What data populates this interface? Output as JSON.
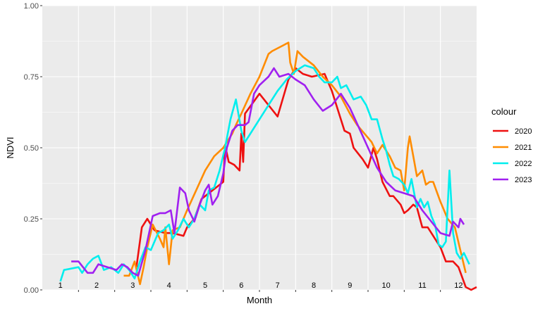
{
  "chart_data": {
    "type": "line",
    "title": "",
    "xlabel": "Month",
    "ylabel": "NDVI",
    "xlim": [
      0.5,
      12.5
    ],
    "ylim": [
      0,
      1
    ],
    "y_ticks": [
      "0.00",
      "0.25",
      "0.50",
      "0.75",
      "1.00"
    ],
    "month_labels": [
      "1",
      "2",
      "3",
      "4",
      "5",
      "6",
      "7",
      "8",
      "9",
      "10",
      "11",
      "12"
    ],
    "grid": true,
    "legend": {
      "title": "colour",
      "position": "right"
    },
    "series": [
      {
        "name": "2020",
        "color": "#ee1111",
        "points": [
          [
            3.1,
            0.08
          ],
          [
            3.25,
            0.22
          ],
          [
            3.4,
            0.25
          ],
          [
            3.6,
            0.21
          ],
          [
            3.9,
            0.2
          ],
          [
            4.1,
            0.2
          ],
          [
            4.4,
            0.19
          ],
          [
            4.5,
            0.22
          ],
          [
            4.7,
            0.25
          ],
          [
            4.9,
            0.32
          ],
          [
            5.2,
            0.35
          ],
          [
            5.5,
            0.38
          ],
          [
            5.55,
            0.51
          ],
          [
            5.65,
            0.45
          ],
          [
            5.8,
            0.44
          ],
          [
            5.95,
            0.42
          ],
          [
            6.0,
            0.55
          ],
          [
            6.05,
            0.45
          ],
          [
            6.1,
            0.62
          ],
          [
            6.5,
            0.69
          ],
          [
            7.0,
            0.61
          ],
          [
            7.3,
            0.74
          ],
          [
            7.5,
            0.78
          ],
          [
            7.7,
            0.76
          ],
          [
            7.95,
            0.75
          ],
          [
            8.3,
            0.76
          ],
          [
            8.5,
            0.7
          ],
          [
            8.7,
            0.62
          ],
          [
            8.85,
            0.56
          ],
          [
            9.0,
            0.55
          ],
          [
            9.1,
            0.5
          ],
          [
            9.35,
            0.46
          ],
          [
            9.5,
            0.43
          ],
          [
            9.65,
            0.5
          ],
          [
            9.75,
            0.46
          ],
          [
            9.9,
            0.38
          ],
          [
            10.1,
            0.33
          ],
          [
            10.2,
            0.33
          ],
          [
            10.4,
            0.3
          ],
          [
            10.5,
            0.27
          ],
          [
            10.6,
            0.28
          ],
          [
            10.75,
            0.3
          ],
          [
            10.85,
            0.29
          ],
          [
            11.0,
            0.22
          ],
          [
            11.15,
            0.22
          ],
          [
            11.3,
            0.19
          ],
          [
            11.5,
            0.15
          ],
          [
            11.65,
            0.1
          ],
          [
            11.85,
            0.1
          ],
          [
            12.0,
            0.08
          ],
          [
            12.2,
            0.01
          ],
          [
            12.35,
            0.0
          ],
          [
            12.5,
            0.01
          ]
        ]
      },
      {
        "name": "2021",
        "color": "#ff8c00",
        "points": [
          [
            2.75,
            0.05
          ],
          [
            2.9,
            0.05
          ],
          [
            3.05,
            0.1
          ],
          [
            3.2,
            0.02
          ],
          [
            3.3,
            0.08
          ],
          [
            3.4,
            0.15
          ],
          [
            3.55,
            0.23
          ],
          [
            3.75,
            0.18
          ],
          [
            3.85,
            0.15
          ],
          [
            3.9,
            0.22
          ],
          [
            4.0,
            0.09
          ],
          [
            4.1,
            0.21
          ],
          [
            4.3,
            0.22
          ],
          [
            4.5,
            0.28
          ],
          [
            4.75,
            0.35
          ],
          [
            5.0,
            0.42
          ],
          [
            5.25,
            0.47
          ],
          [
            5.5,
            0.5
          ],
          [
            5.75,
            0.55
          ],
          [
            5.85,
            0.58
          ],
          [
            6.0,
            0.62
          ],
          [
            6.25,
            0.69
          ],
          [
            6.5,
            0.75
          ],
          [
            6.75,
            0.83
          ],
          [
            6.85,
            0.84
          ],
          [
            7.0,
            0.85
          ],
          [
            7.15,
            0.86
          ],
          [
            7.3,
            0.87
          ],
          [
            7.35,
            0.8
          ],
          [
            7.45,
            0.76
          ],
          [
            7.55,
            0.84
          ],
          [
            7.7,
            0.82
          ],
          [
            8.0,
            0.79
          ],
          [
            8.25,
            0.75
          ],
          [
            8.5,
            0.72
          ],
          [
            8.75,
            0.68
          ],
          [
            9.0,
            0.62
          ],
          [
            9.2,
            0.58
          ],
          [
            9.4,
            0.55
          ],
          [
            9.6,
            0.52
          ],
          [
            9.75,
            0.48
          ],
          [
            9.9,
            0.51
          ],
          [
            10.1,
            0.47
          ],
          [
            10.25,
            0.43
          ],
          [
            10.4,
            0.42
          ],
          [
            10.5,
            0.35
          ],
          [
            10.6,
            0.5
          ],
          [
            10.65,
            0.54
          ],
          [
            10.75,
            0.47
          ],
          [
            10.85,
            0.4
          ],
          [
            11.0,
            0.42
          ],
          [
            11.1,
            0.37
          ],
          [
            11.2,
            0.38
          ],
          [
            11.3,
            0.38
          ],
          [
            11.5,
            0.31
          ],
          [
            11.7,
            0.25
          ],
          [
            11.9,
            0.22
          ],
          [
            12.05,
            0.14
          ],
          [
            12.2,
            0.06
          ]
        ]
      },
      {
        "name": "2022",
        "color": "#00eeee",
        "points": [
          [
            1.0,
            0.03
          ],
          [
            1.1,
            0.07
          ],
          [
            1.5,
            0.08
          ],
          [
            1.6,
            0.06
          ],
          [
            1.75,
            0.09
          ],
          [
            1.9,
            0.11
          ],
          [
            2.05,
            0.12
          ],
          [
            2.2,
            0.07
          ],
          [
            2.4,
            0.08
          ],
          [
            2.6,
            0.06
          ],
          [
            2.75,
            0.09
          ],
          [
            2.9,
            0.07
          ],
          [
            3.05,
            0.04
          ],
          [
            3.2,
            0.1
          ],
          [
            3.35,
            0.15
          ],
          [
            3.5,
            0.14
          ],
          [
            3.7,
            0.2
          ],
          [
            3.85,
            0.21
          ],
          [
            4.0,
            0.23
          ],
          [
            4.1,
            0.18
          ],
          [
            4.25,
            0.21
          ],
          [
            4.4,
            0.25
          ],
          [
            4.55,
            0.22
          ],
          [
            4.7,
            0.25
          ],
          [
            4.85,
            0.3
          ],
          [
            5.0,
            0.28
          ],
          [
            5.1,
            0.35
          ],
          [
            5.25,
            0.36
          ],
          [
            5.4,
            0.42
          ],
          [
            5.55,
            0.5
          ],
          [
            5.7,
            0.6
          ],
          [
            5.85,
            0.67
          ],
          [
            6.0,
            0.56
          ],
          [
            6.1,
            0.52
          ],
          [
            6.3,
            0.56
          ],
          [
            6.5,
            0.6
          ],
          [
            6.75,
            0.65
          ],
          [
            7.0,
            0.7
          ],
          [
            7.25,
            0.74
          ],
          [
            7.5,
            0.77
          ],
          [
            7.75,
            0.79
          ],
          [
            8.0,
            0.78
          ],
          [
            8.15,
            0.75
          ],
          [
            8.3,
            0.73
          ],
          [
            8.5,
            0.73
          ],
          [
            8.65,
            0.75
          ],
          [
            8.75,
            0.71
          ],
          [
            8.9,
            0.72
          ],
          [
            9.1,
            0.67
          ],
          [
            9.3,
            0.68
          ],
          [
            9.45,
            0.65
          ],
          [
            9.6,
            0.6
          ],
          [
            9.75,
            0.6
          ],
          [
            9.9,
            0.53
          ],
          [
            10.0,
            0.49
          ],
          [
            10.1,
            0.44
          ],
          [
            10.2,
            0.4
          ],
          [
            10.35,
            0.39
          ],
          [
            10.5,
            0.37
          ],
          [
            10.6,
            0.34
          ],
          [
            10.7,
            0.39
          ],
          [
            10.85,
            0.29
          ],
          [
            10.95,
            0.32
          ],
          [
            11.05,
            0.29
          ],
          [
            11.15,
            0.31
          ],
          [
            11.25,
            0.26
          ],
          [
            11.35,
            0.23
          ],
          [
            11.45,
            0.16
          ],
          [
            11.55,
            0.15
          ],
          [
            11.65,
            0.17
          ],
          [
            11.75,
            0.42
          ],
          [
            11.85,
            0.2
          ],
          [
            11.95,
            0.13
          ],
          [
            12.05,
            0.11
          ],
          [
            12.15,
            0.13
          ],
          [
            12.3,
            0.09
          ]
        ]
      },
      {
        "name": "2023",
        "color": "#a020f0",
        "points": [
          [
            1.3,
            0.1
          ],
          [
            1.5,
            0.1
          ],
          [
            1.75,
            0.06
          ],
          [
            1.9,
            0.06
          ],
          [
            2.05,
            0.09
          ],
          [
            2.3,
            0.08
          ],
          [
            2.55,
            0.07
          ],
          [
            2.7,
            0.09
          ],
          [
            2.85,
            0.08
          ],
          [
            3.0,
            0.06
          ],
          [
            3.15,
            0.05
          ],
          [
            3.35,
            0.14
          ],
          [
            3.55,
            0.26
          ],
          [
            3.75,
            0.27
          ],
          [
            3.9,
            0.27
          ],
          [
            4.05,
            0.28
          ],
          [
            4.15,
            0.2
          ],
          [
            4.3,
            0.36
          ],
          [
            4.45,
            0.34
          ],
          [
            4.55,
            0.28
          ],
          [
            4.7,
            0.24
          ],
          [
            4.85,
            0.3
          ],
          [
            5.0,
            0.35
          ],
          [
            5.1,
            0.37
          ],
          [
            5.2,
            0.3
          ],
          [
            5.35,
            0.33
          ],
          [
            5.5,
            0.41
          ],
          [
            5.6,
            0.5
          ],
          [
            5.75,
            0.56
          ],
          [
            5.9,
            0.58
          ],
          [
            6.1,
            0.58
          ],
          [
            6.2,
            0.59
          ],
          [
            6.35,
            0.69
          ],
          [
            6.5,
            0.72
          ],
          [
            6.75,
            0.75
          ],
          [
            6.9,
            0.78
          ],
          [
            7.05,
            0.75
          ],
          [
            7.3,
            0.76
          ],
          [
            7.5,
            0.74
          ],
          [
            7.75,
            0.72
          ],
          [
            8.0,
            0.67
          ],
          [
            8.25,
            0.63
          ],
          [
            8.5,
            0.65
          ],
          [
            8.75,
            0.69
          ],
          [
            9.0,
            0.64
          ],
          [
            9.25,
            0.57
          ],
          [
            9.5,
            0.5
          ],
          [
            9.75,
            0.43
          ],
          [
            10.0,
            0.38
          ],
          [
            10.25,
            0.35
          ],
          [
            10.5,
            0.34
          ],
          [
            10.75,
            0.33
          ],
          [
            11.0,
            0.28
          ],
          [
            11.25,
            0.24
          ],
          [
            11.5,
            0.2
          ],
          [
            11.75,
            0.19
          ],
          [
            11.85,
            0.24
          ],
          [
            12.0,
            0.22
          ],
          [
            12.05,
            0.25
          ],
          [
            12.15,
            0.23
          ]
        ]
      }
    ]
  }
}
